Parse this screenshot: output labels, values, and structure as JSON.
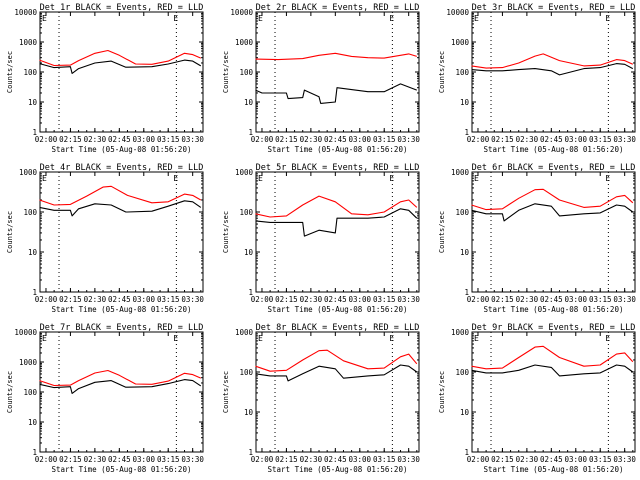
{
  "figure": {
    "x_tick_labels": [
      "02:00",
      "02:15",
      "02:30",
      "02:45",
      "03:00",
      "03:15",
      "03:30"
    ],
    "x_axis_label": "Start Time (05-Aug-08 01:56:20)",
    "y_axis_label": "Counts/sec",
    "event_marker": "E",
    "colors": {
      "events": "#000000",
      "lld": "#ff0000",
      "axes": "#000000",
      "background": "#ffffff"
    }
  },
  "chart_data": [
    {
      "type": "line",
      "title": "Det 1r BLACK = Events, RED = LLD",
      "xlim": [
        "01:56:20",
        "03:36:20"
      ],
      "y_scale": "log",
      "ylim": [
        1,
        10000
      ],
      "y_tick_labels": [
        "1",
        "10",
        "100",
        "1000",
        "10000"
      ],
      "event_lines": [
        "02:08",
        "03:20"
      ],
      "series": [
        {
          "name": "BLACK = Events",
          "color": "#000000",
          "x": [
            "01:56",
            "02:05",
            "02:15",
            "02:16",
            "02:20",
            "02:30",
            "02:40",
            "02:49",
            "02:50",
            "03:05",
            "03:15",
            "03:25",
            "03:30",
            "03:35"
          ],
          "y": [
            190,
            140,
            150,
            90,
            130,
            200,
            230,
            145,
            145,
            150,
            185,
            250,
            230,
            160
          ]
        },
        {
          "name": "RED = LLD",
          "color": "#ff0000",
          "x": [
            "01:56",
            "02:05",
            "02:15",
            "02:20",
            "02:30",
            "02:38",
            "02:45",
            "02:55",
            "03:05",
            "03:15",
            "03:25",
            "03:30",
            "03:35"
          ],
          "y": [
            250,
            165,
            170,
            240,
            420,
            520,
            360,
            185,
            180,
            230,
            420,
            380,
            290
          ]
        }
      ]
    },
    {
      "type": "line",
      "title": "Det 2r BLACK = Events, RED = LLD",
      "xlim": [
        "01:56:20",
        "03:36:20"
      ],
      "y_scale": "log",
      "ylim": [
        1,
        10000
      ],
      "y_tick_labels": [
        "1",
        "10",
        "100",
        "1000",
        "10000"
      ],
      "event_lines": [
        "02:08",
        "03:20"
      ],
      "series": [
        {
          "name": "BLACK = Events",
          "color": "#000000",
          "x": [
            "01:56",
            "02:00",
            "02:15",
            "02:16",
            "02:25",
            "02:26",
            "02:35",
            "02:36",
            "02:45",
            "02:46",
            "03:05",
            "03:15",
            "03:25",
            "03:35"
          ],
          "y": [
            25,
            20,
            20,
            13,
            14,
            25,
            15,
            9,
            10,
            30,
            22,
            22,
            40,
            25
          ]
        },
        {
          "name": "RED = LLD",
          "color": "#ff0000",
          "x": [
            "01:56",
            "02:10",
            "02:25",
            "02:35",
            "02:45",
            "02:55",
            "03:05",
            "03:15",
            "03:25",
            "03:30",
            "03:35"
          ],
          "y": [
            270,
            260,
            280,
            360,
            420,
            330,
            300,
            290,
            360,
            400,
            330
          ]
        }
      ]
    },
    {
      "type": "line",
      "title": "Det 3r BLACK = Events, RED = LLD",
      "xlim": [
        "01:56:20",
        "03:36:20"
      ],
      "y_scale": "log",
      "ylim": [
        1,
        10000
      ],
      "y_tick_labels": [
        "1",
        "10",
        "100",
        "1000",
        "10000"
      ],
      "event_lines": [
        "02:08",
        "03:20"
      ],
      "series": [
        {
          "name": "BLACK = Events",
          "color": "#000000",
          "x": [
            "01:56",
            "02:05",
            "02:15",
            "02:25",
            "02:35",
            "02:45",
            "02:50",
            "03:05",
            "03:15",
            "03:25",
            "03:30",
            "03:35"
          ],
          "y": [
            120,
            110,
            110,
            120,
            130,
            110,
            80,
            130,
            140,
            190,
            180,
            130
          ]
        },
        {
          "name": "RED = LLD",
          "color": "#ff0000",
          "x": [
            "01:56",
            "02:05",
            "02:15",
            "02:25",
            "02:35",
            "02:40",
            "02:50",
            "03:05",
            "03:15",
            "03:25",
            "03:30",
            "03:35"
          ],
          "y": [
            160,
            135,
            140,
            200,
            340,
            400,
            240,
            160,
            170,
            260,
            240,
            180
          ]
        }
      ]
    },
    {
      "type": "line",
      "title": "Det 4r BLACK = Events, RED = LLD",
      "xlim": [
        "01:56:20",
        "03:36:20"
      ],
      "y_scale": "log",
      "ylim": [
        1,
        1000
      ],
      "y_tick_labels": [
        "1",
        "10",
        "100",
        "1000"
      ],
      "event_lines": [
        "02:08",
        "03:20"
      ],
      "series": [
        {
          "name": "BLACK = Events",
          "color": "#000000",
          "x": [
            "01:56",
            "02:05",
            "02:15",
            "02:16",
            "02:20",
            "02:30",
            "02:40",
            "02:49",
            "02:50",
            "03:05",
            "03:15",
            "03:25",
            "03:30",
            "03:35"
          ],
          "y": [
            130,
            110,
            110,
            80,
            120,
            160,
            150,
            100,
            100,
            105,
            140,
            190,
            180,
            130
          ]
        },
        {
          "name": "RED = LLD",
          "color": "#ff0000",
          "x": [
            "01:56",
            "02:05",
            "02:15",
            "02:25",
            "02:35",
            "02:40",
            "02:50",
            "03:05",
            "03:15",
            "03:25",
            "03:30",
            "03:35"
          ],
          "y": [
            200,
            150,
            155,
            250,
            420,
            440,
            260,
            170,
            180,
            280,
            260,
            200
          ]
        }
      ]
    },
    {
      "type": "line",
      "title": "Det 5r BLACK = Events, RED = LLD",
      "xlim": [
        "01:56:20",
        "03:36:20"
      ],
      "y_scale": "log",
      "ylim": [
        1,
        1000
      ],
      "y_tick_labels": [
        "1",
        "10",
        "100",
        "1000"
      ],
      "event_lines": [
        "02:08",
        "03:20"
      ],
      "series": [
        {
          "name": "BLACK = Events",
          "color": "#000000",
          "x": [
            "01:56",
            "02:05",
            "02:15",
            "02:25",
            "02:26",
            "02:35",
            "02:45",
            "02:46",
            "03:05",
            "03:15",
            "03:25",
            "03:30",
            "03:35"
          ],
          "y": [
            60,
            55,
            55,
            55,
            25,
            35,
            30,
            70,
            70,
            75,
            120,
            110,
            70
          ]
        },
        {
          "name": "RED = LLD",
          "color": "#ff0000",
          "x": [
            "01:56",
            "02:05",
            "02:15",
            "02:25",
            "02:35",
            "02:45",
            "02:55",
            "03:05",
            "03:15",
            "03:25",
            "03:30",
            "03:35"
          ],
          "y": [
            90,
            75,
            80,
            150,
            250,
            180,
            90,
            85,
            100,
            180,
            200,
            130
          ]
        }
      ]
    },
    {
      "type": "line",
      "title": "Det 6r BLACK = Events, RED = LLD",
      "xlim": [
        "01:56:20",
        "03:36:20"
      ],
      "y_scale": "log",
      "ylim": [
        1,
        1000
      ],
      "y_tick_labels": [
        "1",
        "10",
        "100",
        "1000"
      ],
      "event_lines": [
        "02:08",
        "03:20"
      ],
      "series": [
        {
          "name": "BLACK = Events",
          "color": "#000000",
          "x": [
            "01:56",
            "02:05",
            "02:15",
            "02:16",
            "02:25",
            "02:35",
            "02:45",
            "02:50",
            "03:05",
            "03:15",
            "03:25",
            "03:30",
            "03:35"
          ],
          "y": [
            110,
            90,
            90,
            60,
            110,
            160,
            140,
            80,
            90,
            95,
            150,
            140,
            100
          ]
        },
        {
          "name": "RED = LLD",
          "color": "#ff0000",
          "x": [
            "01:56",
            "02:05",
            "02:15",
            "02:25",
            "02:35",
            "02:40",
            "02:50",
            "03:05",
            "03:15",
            "03:25",
            "03:30",
            "03:35"
          ],
          "y": [
            150,
            115,
            120,
            220,
            360,
            370,
            200,
            130,
            140,
            240,
            260,
            170
          ]
        }
      ]
    },
    {
      "type": "line",
      "title": "Det 7r BLACK = Events, RED = LLD",
      "xlim": [
        "01:56:20",
        "03:36:20"
      ],
      "y_scale": "log",
      "ylim": [
        1,
        10000
      ],
      "y_tick_labels": [
        "1",
        "10",
        "100",
        "1000",
        "10000"
      ],
      "event_lines": [
        "02:08",
        "03:20"
      ],
      "series": [
        {
          "name": "BLACK = Events",
          "color": "#000000",
          "x": [
            "01:56",
            "02:05",
            "02:15",
            "02:16",
            "02:20",
            "02:30",
            "02:40",
            "02:49",
            "02:50",
            "03:05",
            "03:15",
            "03:25",
            "03:30",
            "03:35"
          ],
          "y": [
            180,
            140,
            150,
            90,
            130,
            210,
            240,
            145,
            145,
            150,
            190,
            260,
            240,
            160
          ]
        },
        {
          "name": "RED = LLD",
          "color": "#ff0000",
          "x": [
            "01:56",
            "02:05",
            "02:15",
            "02:20",
            "02:30",
            "02:38",
            "02:45",
            "02:55",
            "03:05",
            "03:15",
            "03:25",
            "03:30",
            "03:35"
          ],
          "y": [
            240,
            165,
            170,
            240,
            430,
            520,
            360,
            185,
            180,
            230,
            420,
            380,
            290
          ]
        }
      ]
    },
    {
      "type": "line",
      "title": "Det 8r BLACK = Events, RED = LLD",
      "xlim": [
        "01:56:20",
        "03:36:20"
      ],
      "y_scale": "log",
      "ylim": [
        1,
        1000
      ],
      "y_tick_labels": [
        "1",
        "10",
        "100",
        "1000"
      ],
      "event_lines": [
        "02:08",
        "03:20"
      ],
      "series": [
        {
          "name": "BLACK = Events",
          "color": "#000000",
          "x": [
            "01:56",
            "02:05",
            "02:15",
            "02:16",
            "02:25",
            "02:35",
            "02:45",
            "02:50",
            "03:05",
            "03:15",
            "03:25",
            "03:30",
            "03:35"
          ],
          "y": [
            90,
            80,
            80,
            60,
            90,
            140,
            120,
            70,
            80,
            85,
            150,
            140,
            100
          ]
        },
        {
          "name": "RED = LLD",
          "color": "#ff0000",
          "x": [
            "01:56",
            "02:05",
            "02:15",
            "02:25",
            "02:35",
            "02:40",
            "02:50",
            "03:05",
            "03:15",
            "03:25",
            "03:30",
            "03:35"
          ],
          "y": [
            140,
            105,
            110,
            200,
            340,
            350,
            190,
            120,
            125,
            240,
            280,
            160
          ]
        }
      ]
    },
    {
      "type": "line",
      "title": "Det 9r BLACK = Events, RED = LLD",
      "xlim": [
        "01:56:20",
        "03:36:20"
      ],
      "y_scale": "log",
      "ylim": [
        1,
        1000
      ],
      "y_tick_labels": [
        "1",
        "10",
        "100",
        "1000"
      ],
      "event_lines": [
        "02:08",
        "03:20"
      ],
      "series": [
        {
          "name": "BLACK = Events",
          "color": "#000000",
          "x": [
            "01:56",
            "02:05",
            "02:15",
            "02:25",
            "02:35",
            "02:45",
            "02:50",
            "03:05",
            "03:15",
            "03:25",
            "03:30",
            "03:35"
          ],
          "y": [
            110,
            95,
            95,
            110,
            150,
            130,
            80,
            90,
            95,
            150,
            140,
            100
          ]
        },
        {
          "name": "RED = LLD",
          "color": "#ff0000",
          "x": [
            "01:56",
            "02:05",
            "02:15",
            "02:25",
            "02:35",
            "02:40",
            "02:50",
            "03:05",
            "03:15",
            "03:25",
            "03:30",
            "03:35"
          ],
          "y": [
            140,
            120,
            125,
            230,
            420,
            440,
            230,
            140,
            150,
            280,
            300,
            180
          ]
        }
      ]
    }
  ]
}
